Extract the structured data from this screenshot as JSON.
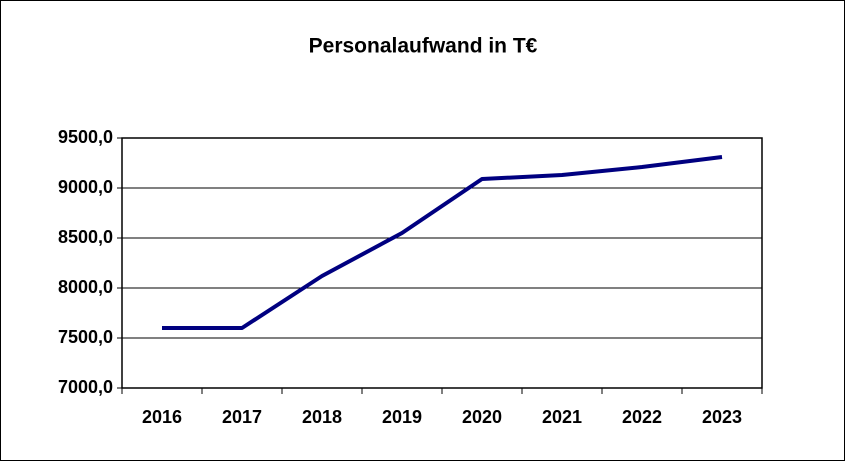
{
  "chart_data": {
    "type": "line",
    "title": "Personalaufwand in T€",
    "categories": [
      "2016",
      "2017",
      "2018",
      "2019",
      "2020",
      "2021",
      "2022",
      "2023"
    ],
    "series": [
      {
        "name": "Personalaufwand",
        "color": "#000080",
        "values": [
          7600,
          7600,
          8120,
          8550,
          9090,
          9130,
          9210,
          9310
        ]
      }
    ],
    "ylim": [
      7000,
      9500
    ],
    "yticks": [
      {
        "value": 7000,
        "label": "7000,0"
      },
      {
        "value": 7500,
        "label": "7500,0"
      },
      {
        "value": 8000,
        "label": "8000,0"
      },
      {
        "value": 8500,
        "label": "8500,0"
      },
      {
        "value": 9000,
        "label": "9000,0"
      },
      {
        "value": 9500,
        "label": "9500,0"
      }
    ],
    "grid": true
  }
}
